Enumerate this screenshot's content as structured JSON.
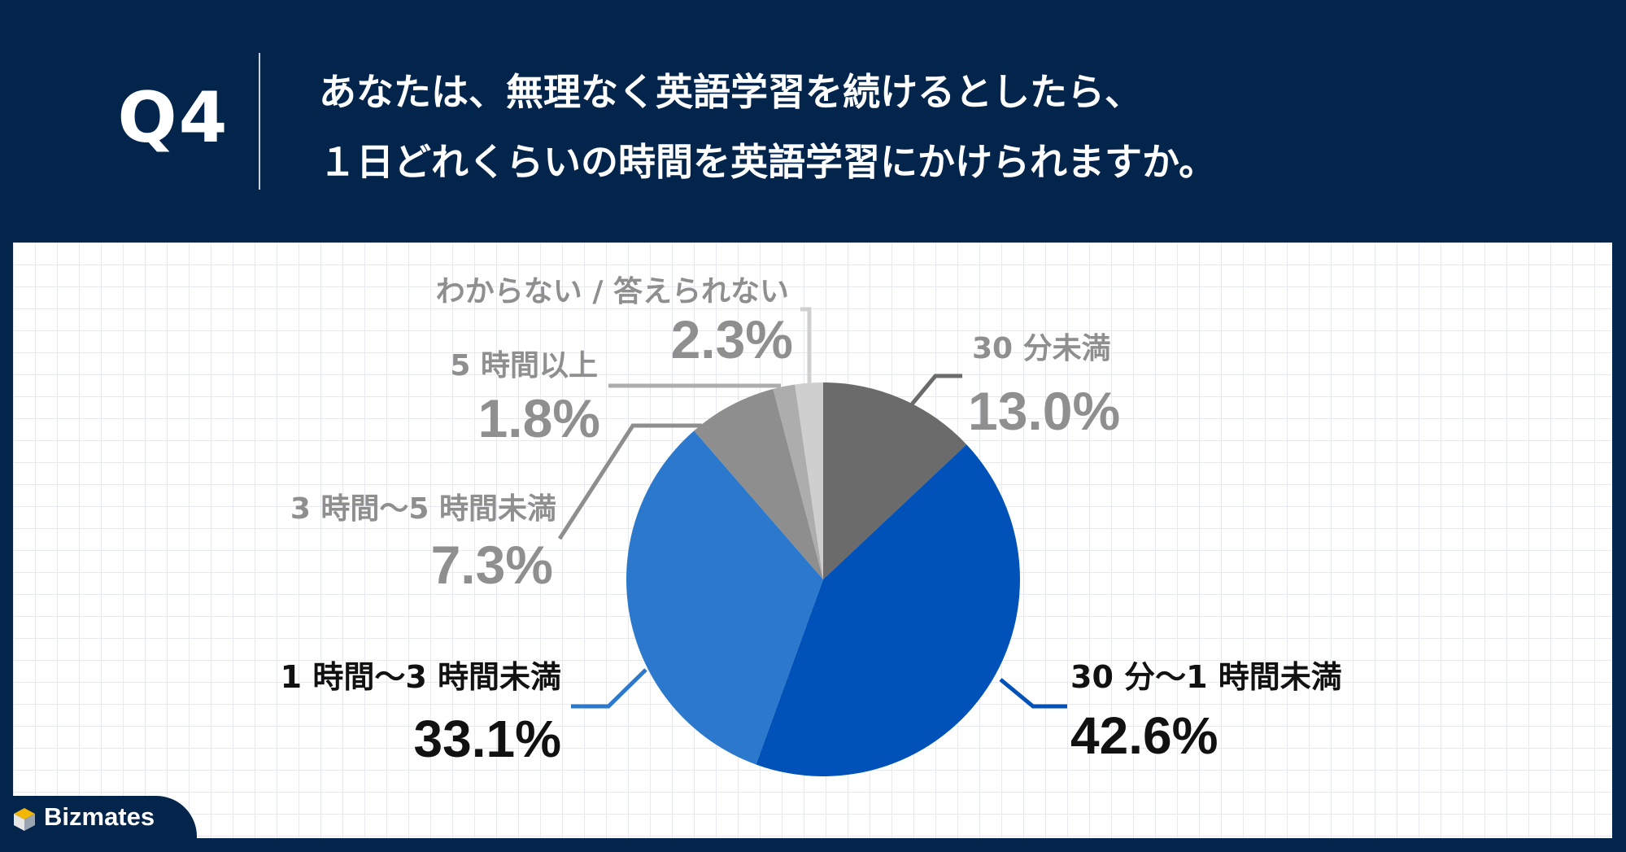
{
  "header": {
    "label": "Q4",
    "question_line1": "あなたは、無理なく英語学習を続けるとしたら、",
    "question_line2": "１日どれくらいの時間を英語学習にかけられますか。"
  },
  "brand": {
    "name": "Bizmates"
  },
  "colors": {
    "background": "#03244b"
  },
  "chart_data": {
    "type": "pie",
    "start": "top",
    "direction": "clockwise",
    "slices": [
      {
        "label": "30 分未満",
        "value": 13.0,
        "value_label": "13.0%",
        "color": "#6b6b6b",
        "text_color": "#8f8f8f"
      },
      {
        "label": "30 分〜1 時間未満",
        "value": 42.6,
        "value_label": "42.6%",
        "color": "#0052b8",
        "text_color": "#111111"
      },
      {
        "label": "1 時間〜3 時間未満",
        "value": 33.1,
        "value_label": "33.1%",
        "color": "#2b78cd",
        "text_color": "#111111"
      },
      {
        "label": "3 時間〜5 時間未満",
        "value": 7.3,
        "value_label": "7.3%",
        "color": "#8e8e8e",
        "text_color": "#8f8f8f"
      },
      {
        "label": "5 時間以上",
        "value": 1.8,
        "value_label": "1.8%",
        "color": "#adadad",
        "text_color": "#8f8f8f"
      },
      {
        "label": "わからない / 答えられない",
        "value": 2.3,
        "value_label": "2.3%",
        "color": "#cfcfcf",
        "text_color": "#8f8f8f"
      }
    ]
  }
}
